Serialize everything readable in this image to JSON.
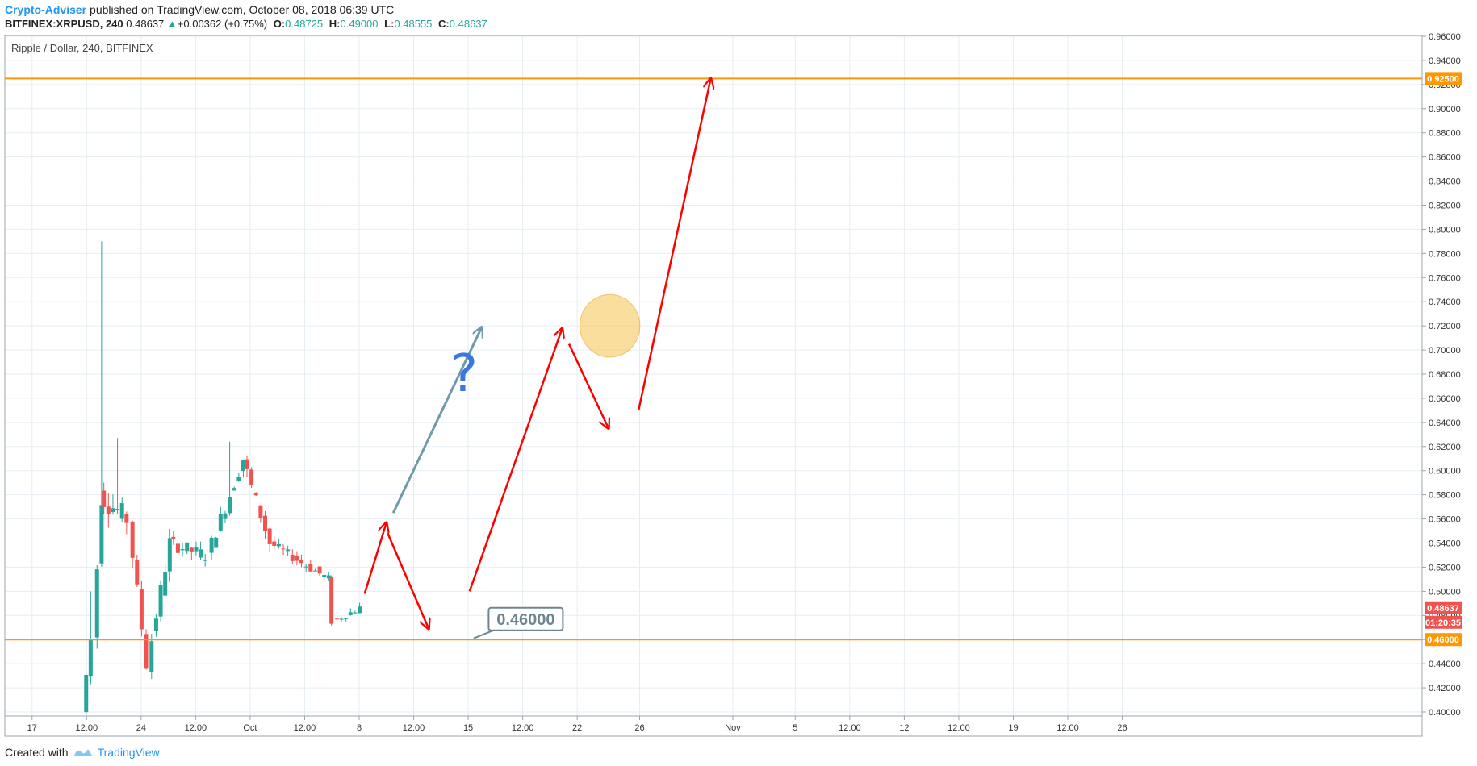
{
  "header": {
    "author": "Crypto-Adviser",
    "published": "published on TradingView.com, October 08, 2018 06:39 UTC",
    "symbol": "BITFINEX:XRPUSD, 240",
    "last": "0.48637",
    "change": "+0.00362 (+0.75%)",
    "o_label": "O:",
    "o": "0.48725",
    "h_label": "H:",
    "h": "0.49000",
    "l_label": "L:",
    "l": "0.48555",
    "c_label": "C:",
    "c": "0.48637"
  },
  "footer": {
    "created_with": "Created with",
    "brand": "TradingView"
  },
  "colors": {
    "up": "#26a69a",
    "down": "#ef5350",
    "level": "#ff9800",
    "arrow_red": "#ff0000",
    "arrow_gray": "#6f9aa8",
    "ellipse": "#f5c24c",
    "question": "#3a78e0",
    "grid": "#e6edf2"
  },
  "chart_data": {
    "type": "candlestick",
    "title": "Ripple / Dollar, 240, BITFINEX",
    "ylim": [
      0.4,
      0.96
    ],
    "y_ticks": [
      0.4,
      0.42,
      0.44,
      0.46,
      0.48,
      0.5,
      0.52,
      0.54,
      0.56,
      0.58,
      0.6,
      0.62,
      0.64,
      0.66,
      0.68,
      0.7,
      0.72,
      0.74,
      0.76,
      0.78,
      0.8,
      0.82,
      0.84,
      0.86,
      0.88,
      0.9,
      0.92,
      0.94,
      0.96
    ],
    "y_tick_labels": [
      "0.40000",
      "0.42000",
      "0.44000",
      "0.46000",
      "0.48000",
      "0.50000",
      "0.52000",
      "0.54000",
      "0.56000",
      "0.58000",
      "0.60000",
      "0.62000",
      "0.64000",
      "0.66000",
      "0.68000",
      "0.70000",
      "0.72000",
      "0.74000",
      "0.76000",
      "0.78000",
      "0.80000",
      "0.82000",
      "0.84000",
      "0.86000",
      "0.88000",
      "0.90000",
      "0.92000",
      "0.94000",
      "0.96000"
    ],
    "x_range": [
      14.0,
      66.0
    ],
    "x_ticks": [
      {
        "d": 15.0,
        "label": "17"
      },
      {
        "d": 17.0,
        "label": "12:00"
      },
      {
        "d": 19.0,
        "label": "24"
      },
      {
        "d": 21.0,
        "label": "12:00"
      },
      {
        "d": 23.0,
        "label": "Oct"
      },
      {
        "d": 25.0,
        "label": "12:00"
      },
      {
        "d": 27.0,
        "label": "8"
      },
      {
        "d": 29.0,
        "label": "12:00"
      },
      {
        "d": 31.0,
        "label": "15"
      },
      {
        "d": 33.0,
        "label": "12:00"
      },
      {
        "d": 35.0,
        "label": "22"
      },
      {
        "d": 37.29,
        "label": "26"
      },
      {
        "d": 40.71,
        "label": "Nov"
      },
      {
        "d": 43.0,
        "label": "5"
      },
      {
        "d": 45.0,
        "label": "12:00"
      },
      {
        "d": 47.0,
        "label": "12"
      },
      {
        "d": 49.0,
        "label": "12:00"
      },
      {
        "d": 51.0,
        "label": "19"
      },
      {
        "d": 53.0,
        "label": "12:00"
      },
      {
        "d": 55.0,
        "label": "26"
      }
    ],
    "segments": [
      {
        "d": [
          16.9,
          17.3
        ],
        "v": [
          0.4,
          0.46
        ],
        "vol": 0.012,
        "spike": 0.5
      },
      {
        "d": [
          17.3,
          17.55
        ],
        "v": [
          0.46,
          0.58
        ],
        "vol": 0.02,
        "spike": 0.79
      },
      {
        "d": [
          17.55,
          18.6
        ],
        "v": [
          0.58,
          0.56
        ],
        "vol": 0.02,
        "spike": 0.627
      },
      {
        "d": [
          18.6,
          19.3
        ],
        "v": [
          0.56,
          0.44
        ],
        "vol": 0.015
      },
      {
        "d": [
          19.3,
          20.1
        ],
        "v": [
          0.44,
          0.54
        ],
        "vol": 0.015
      },
      {
        "d": [
          20.1,
          21.5
        ],
        "v": [
          0.54,
          0.53
        ],
        "vol": 0.012
      },
      {
        "d": [
          21.5,
          22.8
        ],
        "v": [
          0.53,
          0.61
        ],
        "vol": 0.012,
        "spike": 0.624
      },
      {
        "d": [
          22.8,
          23.8
        ],
        "v": [
          0.61,
          0.54
        ],
        "vol": 0.012
      },
      {
        "d": [
          23.8,
          25.9
        ],
        "v": [
          0.54,
          0.51
        ],
        "vol": 0.008
      },
      {
        "d": [
          25.9,
          26.1
        ],
        "v": [
          0.51,
          0.475
        ],
        "vol": 0.006
      },
      {
        "d": [
          26.1,
          27.05
        ],
        "v": [
          0.475,
          0.486
        ],
        "vol": 0.006
      }
    ],
    "levels": [
      {
        "value": 0.925,
        "label": "0.92500"
      },
      {
        "value": 0.46,
        "label": "0.46000"
      }
    ],
    "last_price": {
      "value": 0.48637,
      "label": "0.48637",
      "countdown": "01:20:35"
    },
    "callout": {
      "text": "0.46000",
      "value": 0.46
    },
    "annotations": {
      "question_mark": "?",
      "ellipse": {
        "cx_d": 36.2,
        "cy": 0.72,
        "rx_d": 1.1,
        "ry": 0.026
      },
      "arrows": [
        {
          "color": "red",
          "from": [
            27.2,
            0.498
          ],
          "to": [
            28.0,
            0.557
          ]
        },
        {
          "color": "red",
          "from": [
            28.05,
            0.548
          ],
          "to": [
            29.55,
            0.469
          ]
        },
        {
          "color": "red",
          "from": [
            31.05,
            0.5
          ],
          "to": [
            34.45,
            0.718
          ]
        },
        {
          "color": "red",
          "from": [
            34.7,
            0.705
          ],
          "to": [
            36.15,
            0.635
          ]
        },
        {
          "color": "red",
          "from": [
            37.25,
            0.65
          ],
          "to": [
            39.9,
            0.925
          ]
        },
        {
          "color": "gray",
          "from": [
            28.25,
            0.565
          ],
          "to": [
            31.5,
            0.719
          ]
        }
      ]
    }
  }
}
